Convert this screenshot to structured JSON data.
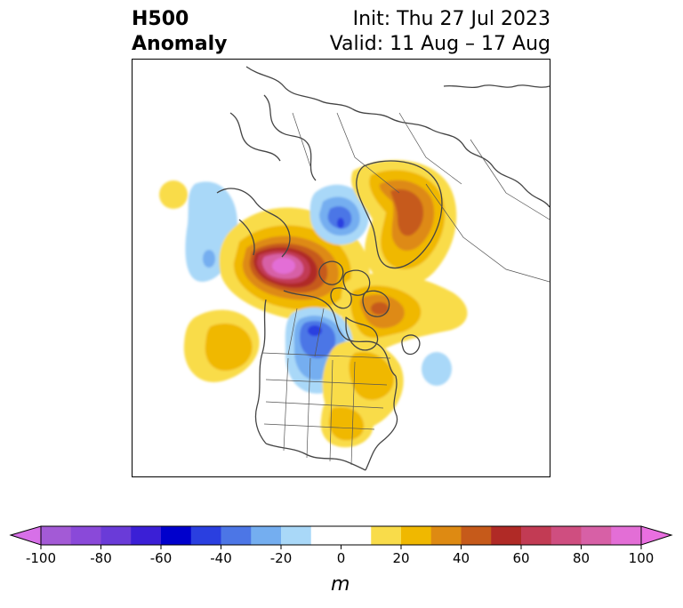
{
  "title": {
    "left_line1": "H500",
    "left_line2": "Anomaly",
    "right_line1": "Init: Thu 27 Jul 2023",
    "right_line2": "Valid: 11 Aug – 17 Aug"
  },
  "colorbar": {
    "unit_label": "m",
    "tick_labels": [
      "-100",
      "-80",
      "-60",
      "-40",
      "-20",
      "0",
      "20",
      "40",
      "60",
      "80",
      "100"
    ],
    "bins": [
      {
        "range": [
          -100,
          -90
        ],
        "color": "#a35ad6"
      },
      {
        "range": [
          -90,
          -80
        ],
        "color": "#8a49d9"
      },
      {
        "range": [
          -80,
          -70
        ],
        "color": "#6a3bd8"
      },
      {
        "range": [
          -70,
          -60
        ],
        "color": "#3b1fd6"
      },
      {
        "range": [
          -60,
          -50
        ],
        "color": "#0000cc"
      },
      {
        "range": [
          -50,
          -40
        ],
        "color": "#2a3fe0"
      },
      {
        "range": [
          -40,
          -30
        ],
        "color": "#4c76e6"
      },
      {
        "range": [
          -30,
          -20
        ],
        "color": "#74aef0"
      },
      {
        "range": [
          -20,
          -10
        ],
        "color": "#a9d8f8"
      },
      {
        "range": [
          -10,
          10
        ],
        "color": "#ffffff"
      },
      {
        "range": [
          10,
          20
        ],
        "color": "#f9dc4a"
      },
      {
        "range": [
          20,
          30
        ],
        "color": "#f0b800"
      },
      {
        "range": [
          30,
          40
        ],
        "color": "#de8a12"
      },
      {
        "range": [
          40,
          50
        ],
        "color": "#c65a1a"
      },
      {
        "range": [
          50,
          60
        ],
        "color": "#b02a26"
      },
      {
        "range": [
          60,
          70
        ],
        "color": "#c23b54"
      },
      {
        "range": [
          70,
          80
        ],
        "color": "#cf4e80"
      },
      {
        "range": [
          80,
          90
        ],
        "color": "#d760a6"
      },
      {
        "range": [
          90,
          100
        ],
        "color": "#e36ed6"
      }
    ],
    "under_color": "#d770e8",
    "over_color": "#e96fe0"
  },
  "map": {
    "projection": "polar stereographic (North America / Arctic)",
    "anomalies": [
      {
        "region": "Alaska / Beaufort Sea",
        "sign": "positive",
        "peak_m": 95
      },
      {
        "region": "Baffin Bay / Greenland",
        "sign": "positive",
        "peak_m": 50
      },
      {
        "region": "Hudson Bay",
        "sign": "positive",
        "peak_m": 45
      },
      {
        "region": "Northeastern United States",
        "sign": "positive",
        "peak_m": 25
      },
      {
        "region": "Northeast Pacific",
        "sign": "positive",
        "peak_m": 25
      },
      {
        "region": "Northwest Canada",
        "sign": "negative",
        "peak_m": -35
      },
      {
        "region": "Arctic Ocean north of Canada",
        "sign": "negative",
        "peak_m": -45
      },
      {
        "region": "Northern Siberia",
        "sign": "negative",
        "peak_m": -25
      },
      {
        "region": "North Atlantic",
        "sign": "negative",
        "peak_m": -20
      }
    ]
  }
}
